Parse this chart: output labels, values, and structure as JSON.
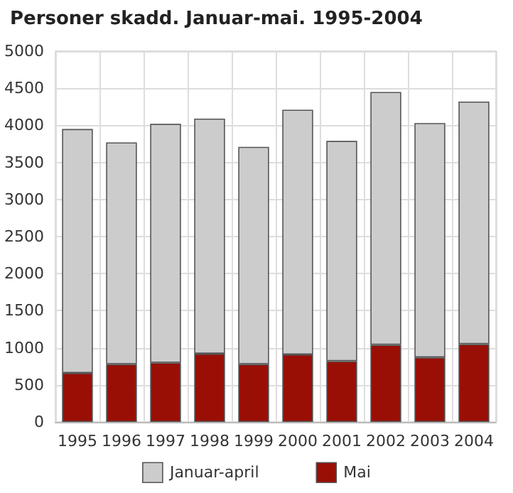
{
  "chart_data": {
    "type": "bar",
    "title": "Personer skadd. Januar-mai. 1995-2004",
    "categories": [
      "1995",
      "1996",
      "1997",
      "1998",
      "1999",
      "2000",
      "2001",
      "2002",
      "2003",
      "2004"
    ],
    "stacked": true,
    "series": [
      {
        "name": "Mai",
        "color": "#990f06",
        "values": [
          660,
          780,
          800,
          920,
          780,
          910,
          820,
          1040,
          870,
          1050
        ]
      },
      {
        "name": "Januar-april",
        "color": "#cccccc",
        "values": [
          3290,
          2990,
          3220,
          3170,
          2930,
          3300,
          2970,
          3410,
          3160,
          3270
        ]
      }
    ],
    "ylim": [
      0,
      5000
    ],
    "yticks": [
      0,
      500,
      1000,
      1500,
      2000,
      2500,
      3000,
      3500,
      4000,
      4500,
      5000
    ],
    "grid": true,
    "legend": "bottom"
  }
}
